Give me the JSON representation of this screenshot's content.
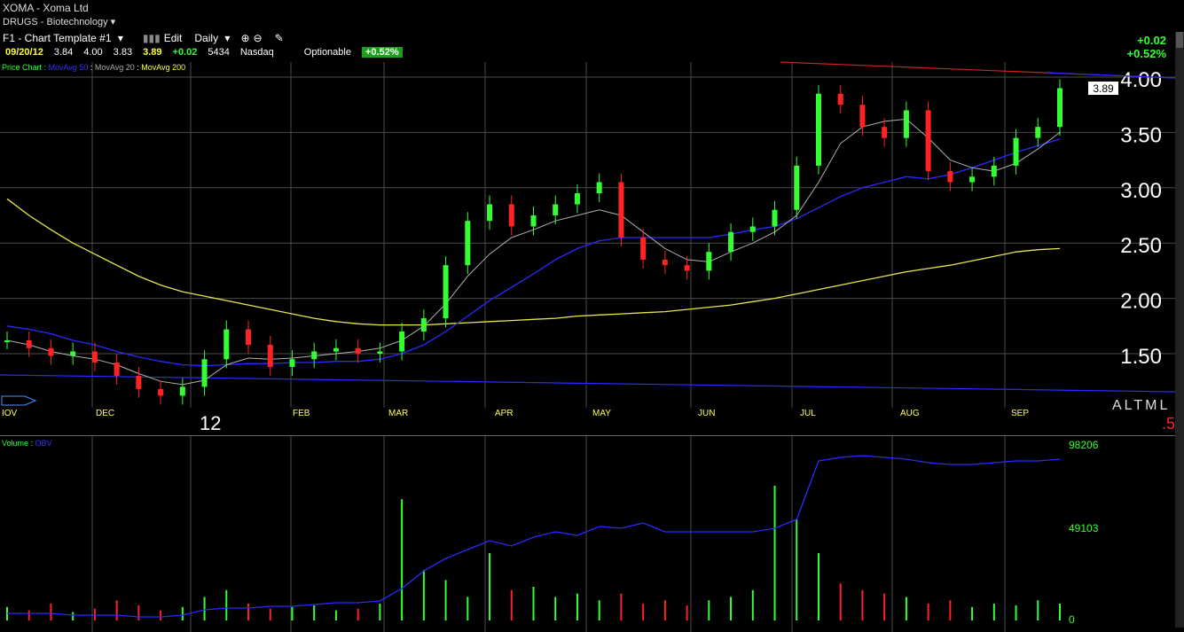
{
  "header": {
    "title": "XOMA - Xoma Ltd",
    "group": "DRUGS - Biotechnology",
    "template": "F1 - Chart Template #1",
    "edit_label": "Edit",
    "period": "Daily",
    "date": "09/20/12",
    "open": "3.84",
    "high": "4.00",
    "low": "3.83",
    "close": "3.89",
    "change": "+0.02",
    "volume": "5434",
    "exchange": "Nasdaq",
    "optionable": "Optionable",
    "pct_badge": "+0.52%",
    "right_change": "+0.02",
    "right_pct": "+0.52%"
  },
  "legend": {
    "price_label": "Price Chart :",
    "ma50": "MovAvg 50",
    "ma20": "MovAvg 20",
    "ma200": "MovAvg 200",
    "vol_label": "Volume :",
    "obv": "OBV"
  },
  "bottom_right": {
    "altml": "ALTML",
    "five": ".5"
  },
  "colors": {
    "up": "#33ff33",
    "down": "#ff2222",
    "ma20": "#b0b0b0",
    "ma50": "#2a2aff",
    "ma200": "#e6e64d",
    "obv": "#2a2aff",
    "trendline": "#cc2222",
    "grid": "#4a4a4a",
    "year_axis": "#ffffff"
  },
  "chart_data": [
    {
      "type": "candlestick",
      "title": "XOMA - Xoma Ltd",
      "x_ticks": [
        "IOV",
        "DEC",
        "12",
        "FEB",
        "MAR",
        "APR",
        "MAY",
        "JUN",
        "JUL",
        "AUG",
        "SEP"
      ],
      "y_ticks": [
        "1.50",
        "2.00",
        "2.50",
        "3.00",
        "3.50",
        "4.00"
      ],
      "ylim": [
        1.0,
        4.08
      ],
      "last_price": "3.89",
      "grid": true,
      "ohlc_weekly_close": [
        1.62,
        1.55,
        1.48,
        1.52,
        1.42,
        1.3,
        1.18,
        1.12,
        1.2,
        1.45,
        1.72,
        1.58,
        1.38,
        1.45,
        1.52,
        1.55,
        1.5,
        1.52,
        1.7,
        1.82,
        2.3,
        2.7,
        2.85,
        2.65,
        2.75,
        2.85,
        2.95,
        3.05,
        2.55,
        2.35,
        2.3,
        2.25,
        2.42,
        2.6,
        2.65,
        2.8,
        3.2,
        3.85,
        3.75,
        3.55,
        3.45,
        3.7,
        3.15,
        3.05,
        3.1,
        3.2,
        3.45,
        3.55,
        3.9
      ],
      "ma20": [
        1.62,
        1.58,
        1.52,
        1.48,
        1.45,
        1.4,
        1.32,
        1.25,
        1.22,
        1.26,
        1.4,
        1.46,
        1.45,
        1.46,
        1.48,
        1.5,
        1.52,
        1.55,
        1.62,
        1.75,
        1.95,
        2.2,
        2.4,
        2.55,
        2.62,
        2.7,
        2.75,
        2.8,
        2.75,
        2.6,
        2.45,
        2.35,
        2.33,
        2.42,
        2.5,
        2.6,
        2.75,
        3.05,
        3.4,
        3.55,
        3.6,
        3.62,
        3.45,
        3.25,
        3.18,
        3.15,
        3.22,
        3.35,
        3.5
      ],
      "ma50": [
        1.75,
        1.72,
        1.68,
        1.62,
        1.58,
        1.52,
        1.47,
        1.43,
        1.4,
        1.39,
        1.4,
        1.41,
        1.41,
        1.42,
        1.42,
        1.43,
        1.43,
        1.45,
        1.5,
        1.58,
        1.7,
        1.84,
        1.98,
        2.1,
        2.22,
        2.35,
        2.45,
        2.52,
        2.55,
        2.55,
        2.55,
        2.55,
        2.55,
        2.58,
        2.62,
        2.65,
        2.72,
        2.82,
        2.92,
        3.0,
        3.05,
        3.1,
        3.08,
        3.12,
        3.18,
        3.25,
        3.32,
        3.38,
        3.44
      ],
      "ma200": [
        2.9,
        2.75,
        2.62,
        2.5,
        2.4,
        2.3,
        2.2,
        2.12,
        2.06,
        2.02,
        1.98,
        1.94,
        1.9,
        1.86,
        1.82,
        1.79,
        1.77,
        1.76,
        1.76,
        1.76,
        1.77,
        1.78,
        1.79,
        1.8,
        1.81,
        1.82,
        1.84,
        1.85,
        1.86,
        1.87,
        1.88,
        1.9,
        1.92,
        1.94,
        1.97,
        2.0,
        2.04,
        2.08,
        2.12,
        2.16,
        2.2,
        2.24,
        2.27,
        2.3,
        2.34,
        2.38,
        2.42,
        2.44,
        2.45
      ]
    },
    {
      "type": "bar",
      "title": "Volume : OBV",
      "y_ticks": [
        "0",
        "49103",
        "98206"
      ],
      "obv": [
        4,
        4,
        4,
        3,
        3,
        3,
        2,
        2,
        3,
        6,
        7,
        7,
        8,
        8,
        9,
        10,
        10,
        11,
        18,
        28,
        35,
        40,
        45,
        42,
        47,
        50,
        48,
        53,
        52,
        55,
        50,
        50,
        50,
        50,
        50,
        52,
        57,
        90,
        92,
        93,
        92,
        91,
        89,
        88,
        88,
        89,
        90,
        90,
        91
      ],
      "volume": [
        8,
        6,
        10,
        5,
        7,
        12,
        9,
        6,
        8,
        14,
        18,
        10,
        7,
        8,
        9,
        6,
        7,
        10,
        72,
        30,
        24,
        14,
        40,
        18,
        20,
        14,
        16,
        12,
        16,
        10,
        12,
        9,
        12,
        14,
        18,
        80,
        60,
        40,
        22,
        18,
        16,
        14,
        10,
        12,
        8,
        10,
        9,
        12,
        10
      ]
    }
  ]
}
